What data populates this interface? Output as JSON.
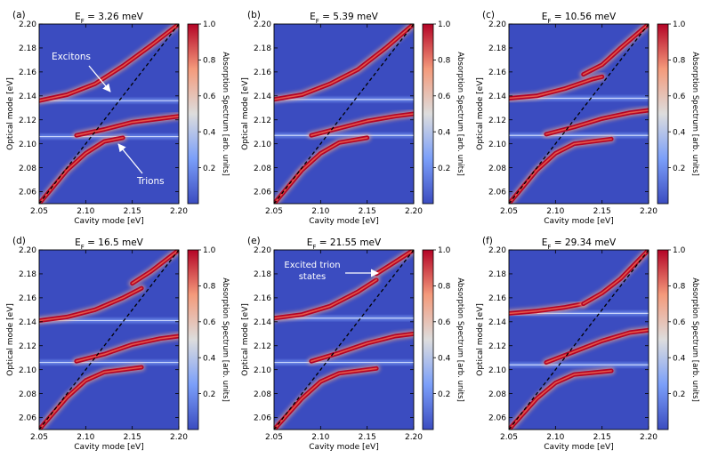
{
  "chart_data": {
    "type": "heatmap",
    "colormap": "coolwarm",
    "shared": {
      "xlabel": "Cavity mode [eV]",
      "ylabel": "Optical mode [eV]",
      "colorbar_label": "Absorption Spectrum [arb. units]",
      "xlim": [
        2.05,
        2.2
      ],
      "ylim": [
        2.05,
        2.2
      ],
      "x_ticks": [
        "2.05",
        "2.10",
        "2.15",
        "2.20"
      ],
      "y_ticks": [
        "2.06",
        "2.08",
        "2.10",
        "2.12",
        "2.14",
        "2.16",
        "2.18",
        "2.20"
      ],
      "colorbar_ticks": [
        "0.2",
        "0.4",
        "0.6",
        "0.8",
        "1.0"
      ],
      "colorbar_range": [
        0,
        1.0
      ],
      "diagonal": "y = x (dashed)"
    },
    "panels": [
      {
        "label": "(a)",
        "title_prefix": "E",
        "title_sub": "F",
        "title_value": " = 3.26 meV",
        "exciton_line": 2.136,
        "trion_line": 2.106,
        "branches": [
          {
            "x": [
              2.05,
              2.08,
              2.11,
              2.14,
              2.17,
              2.2
            ],
            "y": [
              2.136,
              2.141,
              2.15,
              2.165,
              2.182,
              2.2
            ]
          },
          {
            "x": [
              2.09,
              2.12,
              2.15,
              2.18,
              2.2
            ],
            "y": [
              2.107,
              2.112,
              2.118,
              2.121,
              2.123
            ]
          },
          {
            "x": [
              2.05,
              2.08,
              2.1,
              2.12,
              2.14
            ],
            "y": [
              2.05,
              2.078,
              2.092,
              2.102,
              2.105
            ]
          }
        ],
        "annotations": [
          {
            "text": "Excitons"
          },
          {
            "text": "Trions"
          }
        ]
      },
      {
        "label": "(b)",
        "title_prefix": "E",
        "title_sub": "F",
        "title_value": " = 5.39 meV",
        "exciton_line": 2.137,
        "trion_line": 2.107,
        "branches": [
          {
            "x": [
              2.05,
              2.08,
              2.11,
              2.14,
              2.17,
              2.2
            ],
            "y": [
              2.137,
              2.141,
              2.15,
              2.162,
              2.18,
              2.2
            ]
          },
          {
            "x": [
              2.09,
              2.12,
              2.15,
              2.18,
              2.2
            ],
            "y": [
              2.107,
              2.113,
              2.119,
              2.123,
              2.125
            ]
          },
          {
            "x": [
              2.05,
              2.08,
              2.1,
              2.12,
              2.15
            ],
            "y": [
              2.05,
              2.078,
              2.092,
              2.101,
              2.105
            ]
          }
        ],
        "annotations": []
      },
      {
        "label": "(c)",
        "title_prefix": "E",
        "title_sub": "F",
        "title_value": " = 10.56 meV",
        "exciton_line": 2.138,
        "trion_line": 2.107,
        "branches": [
          {
            "x": [
              2.05,
              2.08,
              2.11,
              2.14,
              2.15
            ],
            "y": [
              2.138,
              2.14,
              2.146,
              2.154,
              2.156
            ]
          },
          {
            "x": [
              2.13,
              2.15,
              2.17,
              2.2
            ],
            "y": [
              2.158,
              2.166,
              2.18,
              2.2
            ]
          },
          {
            "x": [
              2.09,
              2.12,
              2.15,
              2.18,
              2.2
            ],
            "y": [
              2.108,
              2.114,
              2.121,
              2.126,
              2.128
            ]
          },
          {
            "x": [
              2.05,
              2.08,
              2.1,
              2.12,
              2.16
            ],
            "y": [
              2.05,
              2.078,
              2.092,
              2.1,
              2.104
            ]
          }
        ],
        "annotations": []
      },
      {
        "label": "(d)",
        "title_prefix": "E",
        "title_sub": "F",
        "title_value": " = 16.5 meV",
        "exciton_line": 2.141,
        "trion_line": 2.106,
        "branches": [
          {
            "x": [
              2.05,
              2.08,
              2.11,
              2.14,
              2.16
            ],
            "y": [
              2.141,
              2.144,
              2.15,
              2.16,
              2.168
            ]
          },
          {
            "x": [
              2.15,
              2.17,
              2.19,
              2.2
            ],
            "y": [
              2.172,
              2.182,
              2.194,
              2.2
            ]
          },
          {
            "x": [
              2.09,
              2.12,
              2.15,
              2.18,
              2.2
            ],
            "y": [
              2.107,
              2.113,
              2.121,
              2.126,
              2.128
            ]
          },
          {
            "x": [
              2.05,
              2.08,
              2.1,
              2.12,
              2.16
            ],
            "y": [
              2.05,
              2.077,
              2.091,
              2.098,
              2.102
            ]
          }
        ],
        "annotations": []
      },
      {
        "label": "(e)",
        "title_prefix": "E",
        "title_sub": "F",
        "title_value": " = 21.55 meV",
        "exciton_line": 2.143,
        "trion_line": 2.106,
        "branches": [
          {
            "x": [
              2.05,
              2.08,
              2.11,
              2.14,
              2.16
            ],
            "y": [
              2.143,
              2.146,
              2.153,
              2.165,
              2.175
            ]
          },
          {
            "x": [
              2.16,
              2.18,
              2.2
            ],
            "y": [
              2.18,
              2.19,
              2.2
            ]
          },
          {
            "x": [
              2.09,
              2.12,
              2.15,
              2.18,
              2.2
            ],
            "y": [
              2.107,
              2.114,
              2.122,
              2.128,
              2.13
            ]
          },
          {
            "x": [
              2.05,
              2.08,
              2.1,
              2.12,
              2.16
            ],
            "y": [
              2.05,
              2.076,
              2.09,
              2.097,
              2.101
            ]
          }
        ],
        "annotations": [
          {
            "text": "Excited trion"
          },
          {
            "text": "states"
          }
        ]
      },
      {
        "label": "(f)",
        "title_prefix": "E",
        "title_sub": "F",
        "title_value": " = 29.34 meV",
        "exciton_line": 2.147,
        "trion_line": 2.104,
        "branches": [
          {
            "x": [
              2.05,
              2.08,
              2.11,
              2.13
            ],
            "y": [
              2.147,
              2.149,
              2.152,
              2.155
            ]
          },
          {
            "x": [
              2.13,
              2.15,
              2.17,
              2.19,
              2.2
            ],
            "y": [
              2.155,
              2.164,
              2.176,
              2.192,
              2.2
            ]
          },
          {
            "x": [
              2.09,
              2.12,
              2.15,
              2.18,
              2.2
            ],
            "y": [
              2.106,
              2.115,
              2.124,
              2.131,
              2.133
            ]
          },
          {
            "x": [
              2.05,
              2.08,
              2.1,
              2.12,
              2.16
            ],
            "y": [
              2.05,
              2.076,
              2.089,
              2.096,
              2.099
            ]
          }
        ],
        "annotations": []
      }
    ]
  }
}
